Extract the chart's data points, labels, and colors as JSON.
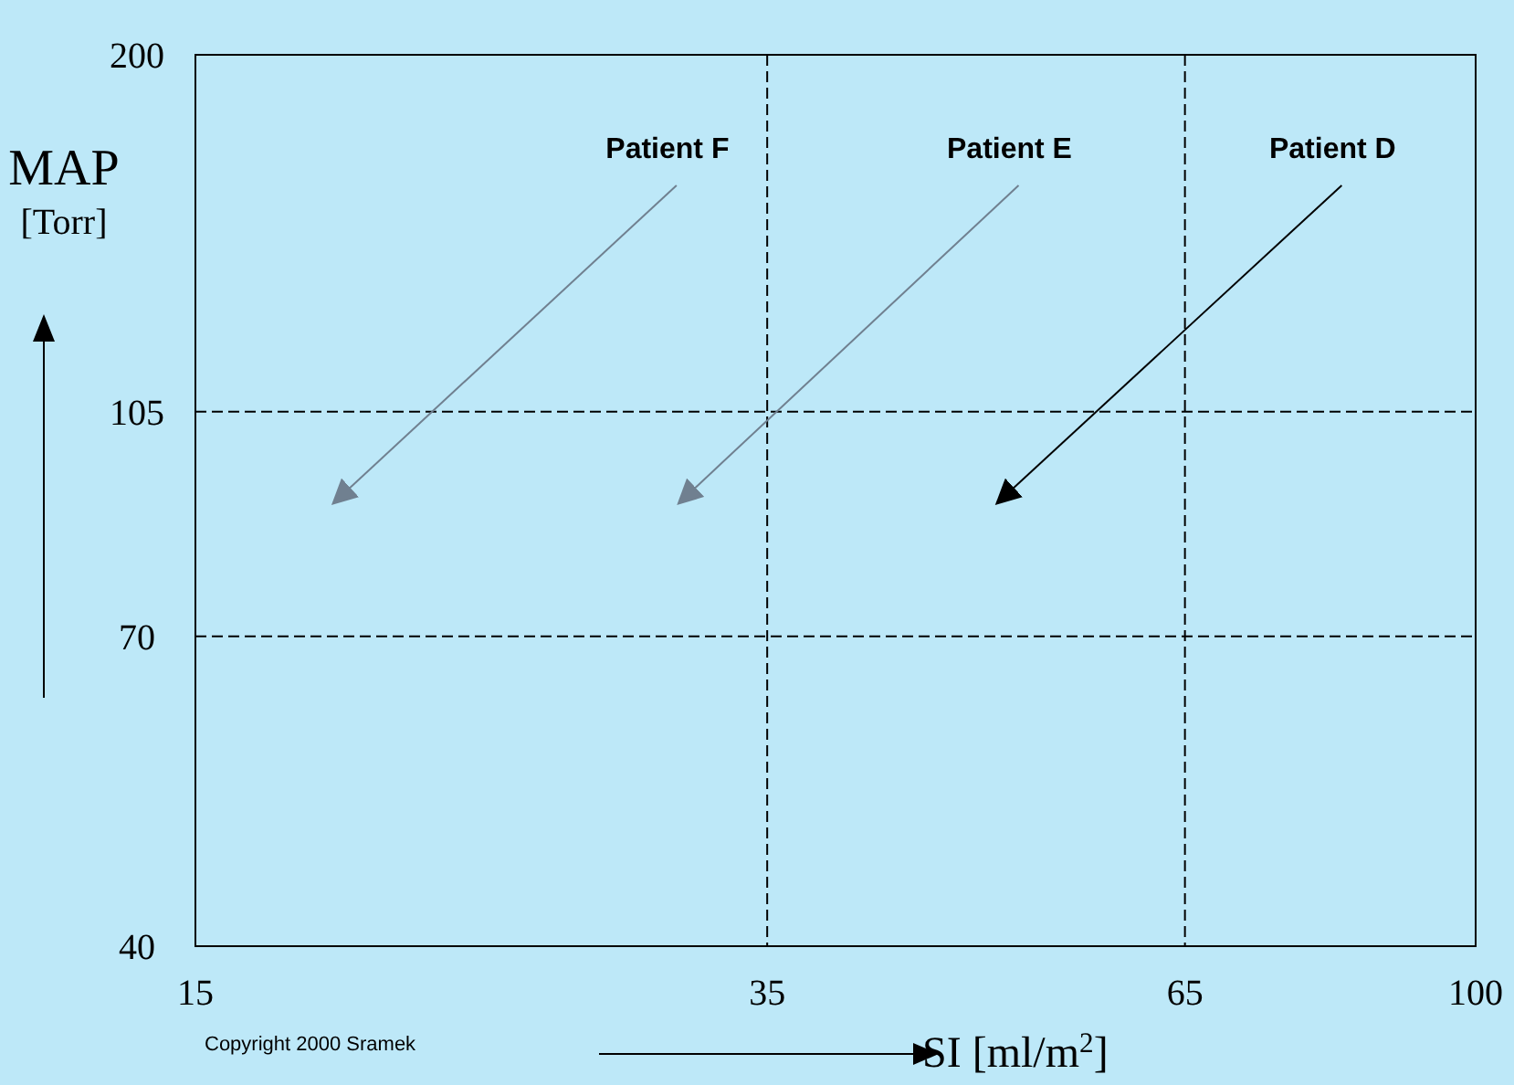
{
  "chart_data": {
    "type": "line",
    "xlabel": "SI [ml/m$^{2}$]",
    "ylabel": "MAP [Torr]",
    "xlim": [
      15,
      100
    ],
    "xticks": [
      15,
      35,
      65,
      100
    ],
    "ylim": [
      40,
      200
    ],
    "yticks": [
      40,
      70,
      105,
      200
    ],
    "grid": true,
    "log": "xy",
    "line_style": "solid",
    "marker": "none",
    "series": [
      {
        "name": "Patient F",
        "color": "#708090",
        "x": [
          30.6,
          18.4
        ],
        "values": [
          158,
          89
        ]
      },
      {
        "name": "Patient E",
        "color": "#708090",
        "x": [
          50.8,
          30.7
        ],
        "values": [
          158,
          89
        ]
      },
      {
        "name": "Patient D",
        "color": "#000000",
        "x": [
          82,
          49.2
        ],
        "values": [
          158,
          89
        ]
      }
    ],
    "annotations": [
      "Copyright 2000 Sramek"
    ]
  }
}
